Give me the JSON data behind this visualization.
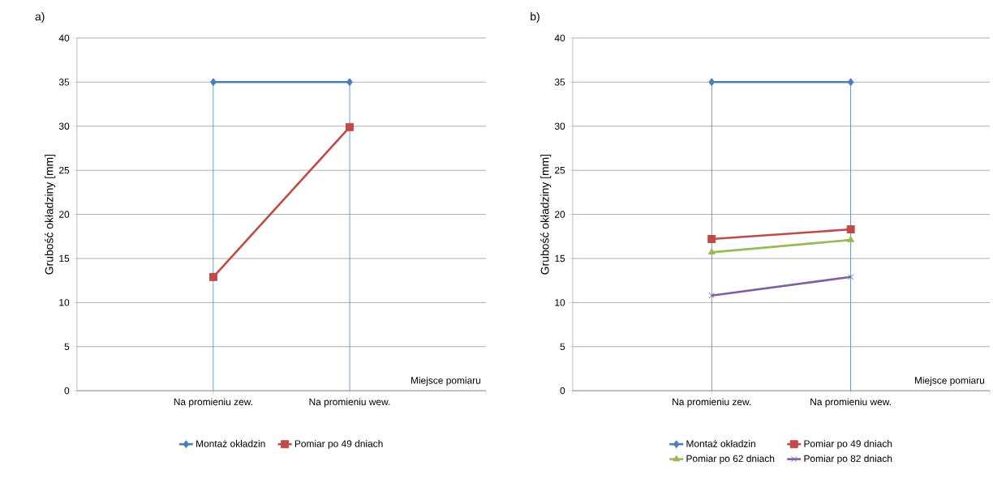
{
  "chart_data": [
    {
      "type": "line",
      "title": "a)",
      "ylabel": "Grubość okładziny [mm]",
      "xlabel": "Miejsce pomiaru",
      "categories": [
        null,
        "Na promieniu zew.",
        "Na promieniu wew.",
        null
      ],
      "series": [
        {
          "name": "Montaż okładzin",
          "color": "#4a7ebb",
          "marker": "diamond",
          "values": [
            null,
            35,
            35,
            null
          ]
        },
        {
          "name": "Pomiar po 49 dniach",
          "color": "#be4b48",
          "marker": "square",
          "values": [
            null,
            12.9,
            29.9,
            null
          ]
        }
      ],
      "ref_lines": [
        {
          "axis": "x",
          "value": "Na promieniu zew.",
          "color": "#4a7ebb"
        },
        {
          "axis": "x",
          "value": "Na promieniu wew.",
          "color": "#4a7ebb"
        }
      ],
      "ylim": [
        0,
        40
      ],
      "yticks": [
        0,
        5,
        10,
        15,
        20,
        25,
        30,
        35,
        40
      ],
      "grid": "y",
      "legend": "bottom"
    },
    {
      "type": "line",
      "title": "b)",
      "ylabel": "Grubość okładziny [mm]",
      "xlabel": "Miejsce pomiaru",
      "categories": [
        null,
        "Na promieniu zew.",
        "Na promieniu wew.",
        null
      ],
      "series": [
        {
          "name": "Montaż okładzin",
          "color": "#4a7ebb",
          "marker": "diamond",
          "values": [
            null,
            35,
            35,
            null
          ]
        },
        {
          "name": "Pomiar po 49 dniach",
          "color": "#be4b48",
          "marker": "square",
          "values": [
            null,
            17.2,
            18.3,
            null
          ]
        },
        {
          "name": "Pomiar po 62 dniach",
          "color": "#98b954",
          "marker": "triangle",
          "values": [
            null,
            15.7,
            17.1,
            null
          ]
        },
        {
          "name": "Pomiar po 82 dniach",
          "color": "#7d60a0",
          "marker": "cross",
          "values": [
            null,
            10.8,
            12.9,
            null
          ]
        }
      ],
      "ref_lines": [
        {
          "axis": "x",
          "value": "Na promieniu zew.",
          "color": "#4a7ebb"
        },
        {
          "axis": "x",
          "value": "Na promieniu wew.",
          "color": "#4a7ebb"
        }
      ],
      "ylim": [
        0,
        40
      ],
      "yticks": [
        0,
        5,
        10,
        15,
        20,
        25,
        30,
        35,
        40
      ],
      "grid": "y",
      "legend": "bottom"
    }
  ]
}
